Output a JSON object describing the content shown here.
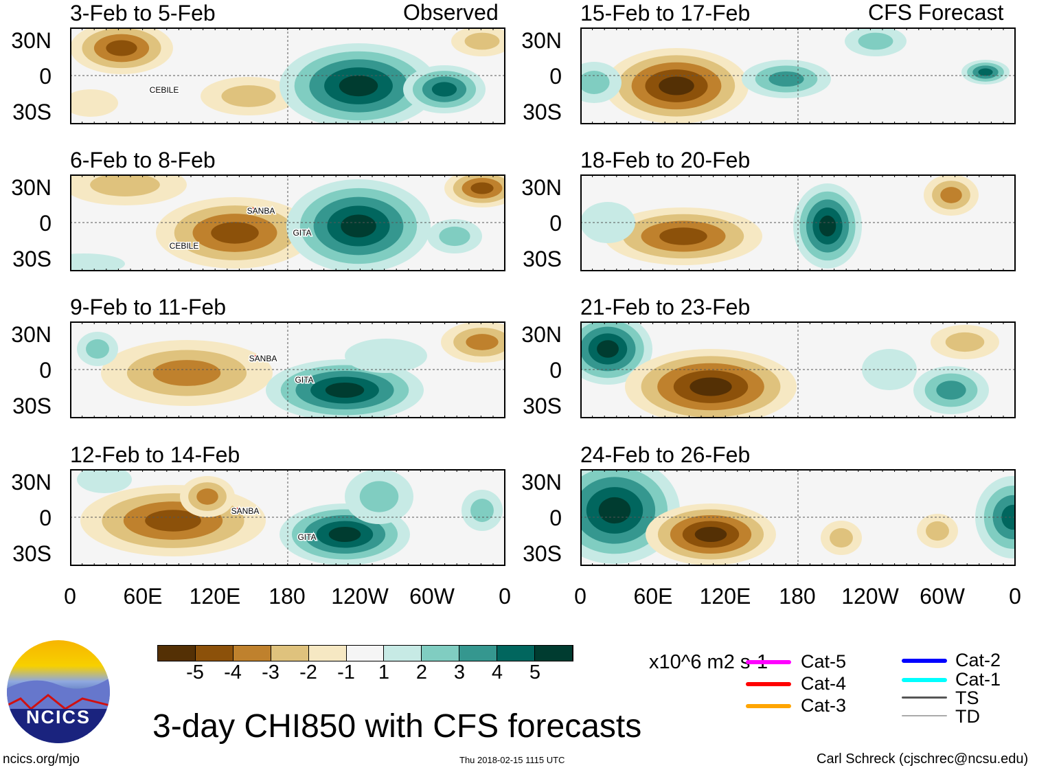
{
  "headers": {
    "left": "Observed",
    "right": "CFS Forecast"
  },
  "panels": [
    {
      "title": "3-Feb to 5-Feb",
      "storms": [
        {
          "name": "CEBILE"
        }
      ]
    },
    {
      "title": "6-Feb to 8-Feb",
      "storms": [
        {
          "name": "SANBA"
        },
        {
          "name": "GITA"
        },
        {
          "name": "CEBILE"
        }
      ]
    },
    {
      "title": "9-Feb to 11-Feb",
      "storms": [
        {
          "name": "SANBA"
        },
        {
          "name": "GITA"
        }
      ]
    },
    {
      "title": "12-Feb to 14-Feb",
      "storms": [
        {
          "name": "SANBA"
        },
        {
          "name": "GITA"
        }
      ]
    },
    {
      "title": "15-Feb to 17-Feb",
      "storms": []
    },
    {
      "title": "18-Feb to 20-Feb",
      "storms": []
    },
    {
      "title": "21-Feb to 23-Feb",
      "storms": []
    },
    {
      "title": "24-Feb to 26-Feb",
      "storms": []
    }
  ],
  "chart_data": {
    "type": "heatmap",
    "title": "3-day CHI850 with CFS forecasts",
    "units": "x10^6 m2 s-1",
    "y_ticks": [
      "30N",
      "0",
      "30S"
    ],
    "x_ticks": [
      "0",
      "60E",
      "120E",
      "180",
      "120W",
      "60W",
      "0"
    ],
    "colorbar": {
      "labels": [
        "-5",
        "-4",
        "-3",
        "-2",
        "-1",
        "1",
        "2",
        "3",
        "4",
        "5"
      ],
      "colors": [
        "#543005",
        "#8c510a",
        "#bf812d",
        "#dfc27d",
        "#f6e8c3",
        "#f5f5f5",
        "#c7eae5",
        "#80cdc1",
        "#35978f",
        "#01665e",
        "#003c30"
      ]
    }
  },
  "legend": [
    {
      "label": "Cat-5",
      "color": "#ff00ff"
    },
    {
      "label": "Cat-4",
      "color": "#ff0000"
    },
    {
      "label": "Cat-3",
      "color": "#ffa500"
    },
    {
      "label": "Cat-2",
      "color": "#0000ff"
    },
    {
      "label": "Cat-1",
      "color": "#00ffff"
    },
    {
      "label": "TS",
      "color": "#555555"
    },
    {
      "label": "TD",
      "color": "#aaaaaa"
    }
  ],
  "footer": {
    "url": "ncics.org/mjo",
    "timestamp": "Thu 2018-02-15 1115 UTC",
    "author": "Carl Schreck (cjschrec@ncsu.edu)",
    "logo": "NCICS"
  }
}
